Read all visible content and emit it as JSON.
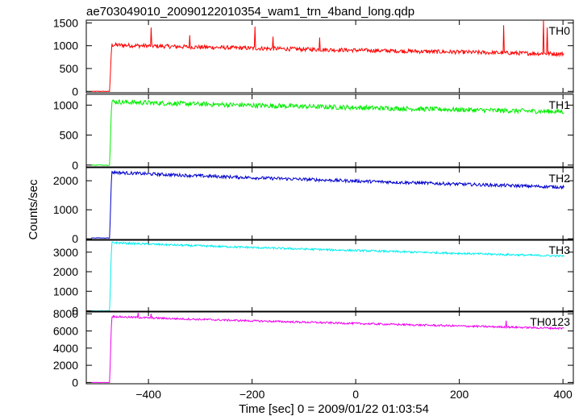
{
  "chart_data": {
    "type": "line",
    "title": "ae703049010_20090122010354_wam1_trn_4band_long.qdp",
    "xlabel": "Time [sec] 0 = 2009/01/22 01:03:54",
    "ylabel": "Counts/sec",
    "xlim": [
      -520,
      420
    ],
    "x_ticks": [
      -400,
      -200,
      0,
      200,
      400
    ],
    "panels": [
      {
        "name": "TH0",
        "color": "#ff0000",
        "ylim": [
          -30,
          1560
        ],
        "y_ticks": [
          0,
          500,
          1000,
          1500
        ],
        "pre_level": 0,
        "peak": 1020,
        "end_level": 820,
        "noise": 45,
        "spikes": [
          {
            "x": -395,
            "y": 1400
          },
          {
            "x": -320,
            "y": 1230
          },
          {
            "x": -195,
            "y": 1420
          },
          {
            "x": -160,
            "y": 1200
          },
          {
            "x": -70,
            "y": 1180
          },
          {
            "x": 285,
            "y": 1450
          },
          {
            "x": 362,
            "y": 1560
          },
          {
            "x": 370,
            "y": 1400
          }
        ]
      },
      {
        "name": "TH1",
        "color": "#00ee00",
        "ylim": [
          -30,
          1180
        ],
        "y_ticks": [
          0,
          500,
          1000
        ],
        "pre_level": 0,
        "peak": 1060,
        "end_level": 890,
        "noise": 40,
        "spikes": []
      },
      {
        "name": "TH2",
        "color": "#0000cc",
        "ylim": [
          -50,
          2450
        ],
        "y_ticks": [
          0,
          1000,
          2000
        ],
        "pre_level": 30,
        "peak": 2300,
        "end_level": 1780,
        "noise": 55,
        "spikes": []
      },
      {
        "name": "TH3",
        "color": "#00eeee",
        "ylim": [
          -60,
          3650
        ],
        "y_ticks": [
          0,
          1000,
          2000,
          3000
        ],
        "pre_level": 0,
        "peak": 3500,
        "end_level": 2800,
        "noise": 50,
        "spikes": []
      },
      {
        "name": "TH0123",
        "color": "#ee00ee",
        "ylim": [
          -150,
          8300
        ],
        "y_ticks": [
          0,
          2000,
          4000,
          6000,
          8000
        ],
        "pre_level": 0,
        "peak": 7700,
        "end_level": 6300,
        "noise": 110,
        "spikes": [
          {
            "x": -420,
            "y": 8100
          },
          {
            "x": -395,
            "y": 8000
          },
          {
            "x": 290,
            "y": 7200
          }
        ]
      }
    ],
    "onset_x": -475,
    "data_start_x": -510,
    "data_end_x": 402
  }
}
